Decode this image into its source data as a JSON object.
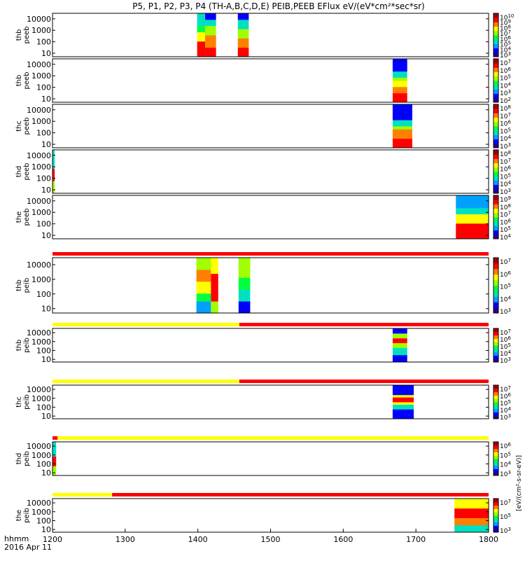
{
  "chart_data": {
    "type": "heatmap",
    "title": "P5, P1, P2, P3, P4 (TH-A,B,C,D,E) PEIB,PEEB EFlux eV/(eV*cm²*sec*sr)",
    "xlabel": "hhmm",
    "date_label": "2016 Apr 11",
    "xlim": [
      1200,
      1800
    ],
    "x_ticks": [
      "1200",
      "1300",
      "1400",
      "1500",
      "1600",
      "1700",
      "1800"
    ],
    "ylim": [
      5,
      30000
    ],
    "y_scale": "log",
    "y_ticks": [
      "10",
      "100",
      "1000",
      "10000"
    ],
    "colorbar_label": "[eV/(cm²-s-sr-eV)]",
    "colorbar_tick_prefix": "10",
    "color_scale": [
      "#2a0080",
      "#0000ff",
      "#00a0ff",
      "#00e0c0",
      "#00ff40",
      "#a0ff00",
      "#ffff00",
      "#ff8000",
      "#ff0000",
      "#a00000"
    ],
    "bar_colors": {
      "yellow": "#ffff00",
      "red": "#ff0000"
    },
    "panels": [
      {
        "ylabel": [
          "thb",
          "peeb"
        ],
        "cbar_exps": [
          "10",
          "9",
          "8",
          "7",
          "6",
          "5",
          "4",
          "3"
        ],
        "blocks": [
          {
            "x0": 1399,
            "x1": 1410,
            "profile": "ehot"
          },
          {
            "x0": 1410,
            "x1": 1425,
            "profile": "ecool"
          },
          {
            "x0": 1455,
            "x1": 1470,
            "profile": "emid"
          }
        ]
      },
      {
        "ylabel": [
          "thb",
          "peeb"
        ],
        "cbar_exps": [
          "7",
          "6",
          "5",
          "4",
          "3",
          "2"
        ],
        "blocks": [
          {
            "x0": 1668,
            "x1": 1688,
            "profile": "elow"
          }
        ]
      },
      {
        "ylabel": [
          "thc",
          "peeb"
        ],
        "cbar_exps": [
          "8",
          "7",
          "6",
          "5",
          "4",
          "3"
        ],
        "blocks": [
          {
            "x0": 1668,
            "x1": 1695,
            "profile": "elow2"
          }
        ]
      },
      {
        "ylabel": [
          "thd",
          "peeb"
        ],
        "cbar_exps": [
          "8",
          "7",
          "6",
          "5",
          "4",
          "3"
        ],
        "blocks": [
          {
            "x0": 1200,
            "x1": 1203,
            "profile": "edge"
          }
        ]
      },
      {
        "ylabel": [
          "the",
          "peeb"
        ],
        "cbar_exps": [
          "9",
          "8",
          "7",
          "6",
          "5",
          "4"
        ],
        "blocks": [
          {
            "x0": 1755,
            "x1": 1800,
            "profile": "emix"
          }
        ]
      },
      {
        "ylabel": [
          "thb",
          "peib"
        ],
        "cbar_exps": [
          "7",
          "6",
          "5",
          "4",
          "3"
        ],
        "bar": [
          {
            "x0": 1200,
            "x1": 1800,
            "color": "red"
          }
        ],
        "blocks": [
          {
            "x0": 1398,
            "x1": 1418,
            "profile": "ihot"
          },
          {
            "x0": 1418,
            "x1": 1428,
            "profile": "ired"
          },
          {
            "x0": 1456,
            "x1": 1472,
            "profile": "imid"
          }
        ]
      },
      {
        "ylabel": [
          "thb",
          "peib"
        ],
        "cbar_exps": [
          "7",
          "6",
          "5",
          "4",
          "3"
        ],
        "bar": [
          {
            "x0": 1200,
            "x1": 1457,
            "color": "yellow"
          },
          {
            "x0": 1457,
            "x1": 1800,
            "color": "red"
          }
        ],
        "blocks": [
          {
            "x0": 1668,
            "x1": 1688,
            "profile": "iband"
          }
        ]
      },
      {
        "ylabel": [
          "thc",
          "peib"
        ],
        "cbar_exps": [
          "7",
          "6",
          "5",
          "4",
          "3"
        ],
        "bar": [
          {
            "x0": 1200,
            "x1": 1457,
            "color": "yellow"
          },
          {
            "x0": 1457,
            "x1": 1800,
            "color": "red"
          }
        ],
        "blocks": [
          {
            "x0": 1668,
            "x1": 1697,
            "profile": "iband2"
          }
        ]
      },
      {
        "ylabel": [
          "thd",
          "peib"
        ],
        "cbar_exps": [
          "6",
          "5",
          "4",
          "3"
        ],
        "bar": [
          {
            "x0": 1200,
            "x1": 1207,
            "color": "red"
          },
          {
            "x0": 1207,
            "x1": 1800,
            "color": "yellow"
          }
        ],
        "blocks": [
          {
            "x0": 1200,
            "x1": 1205,
            "profile": "edge"
          }
        ]
      },
      {
        "ylabel": [
          "the",
          "peib"
        ],
        "cbar_exps": [
          "7",
          "5",
          "3"
        ],
        "bar": [
          {
            "x0": 1200,
            "x1": 1282,
            "color": "yellow"
          },
          {
            "x0": 1282,
            "x1": 1800,
            "color": "red"
          }
        ],
        "blocks": [
          {
            "x0": 1753,
            "x1": 1800,
            "profile": "imix"
          }
        ]
      }
    ]
  }
}
